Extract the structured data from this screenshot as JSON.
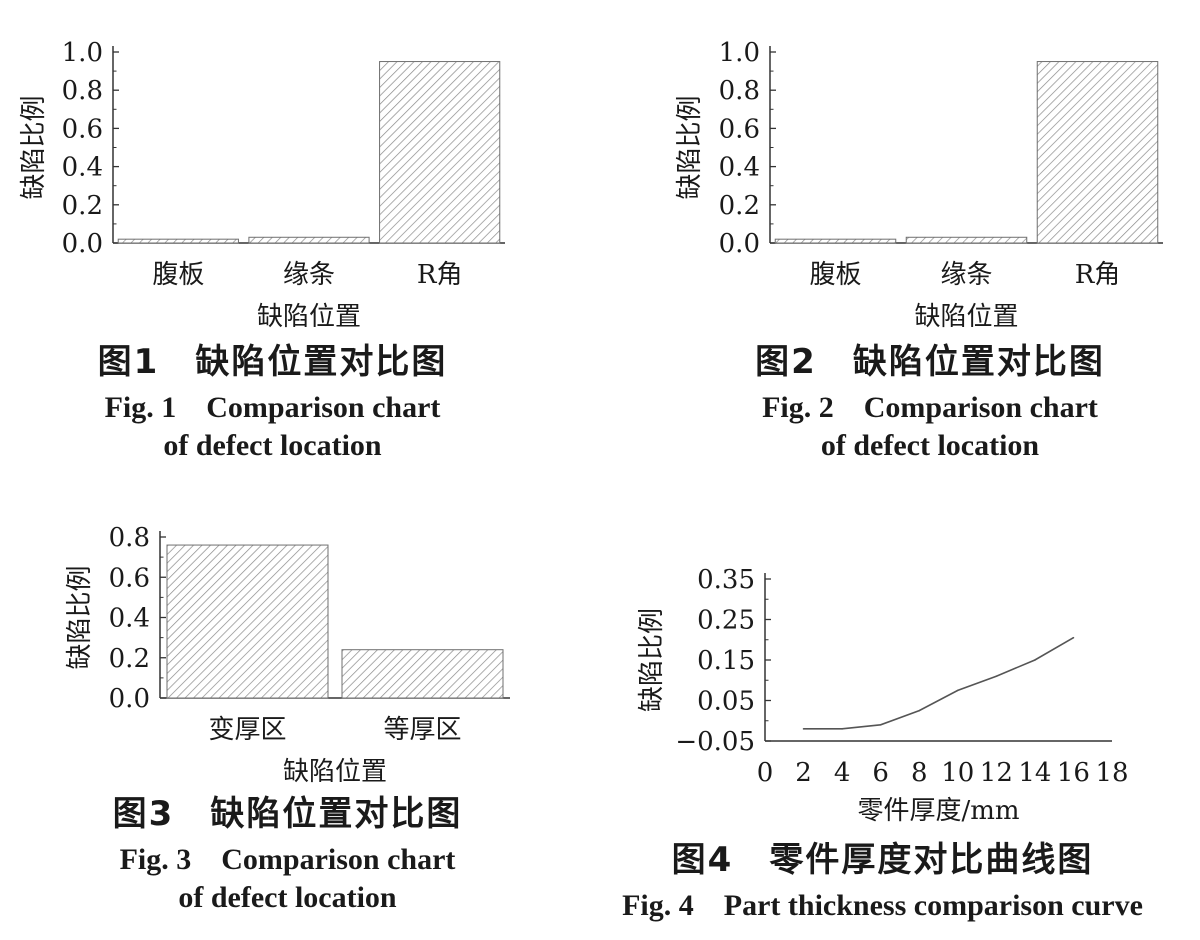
{
  "figures": [
    {
      "caption_cn": "图1　缺陷位置对比图",
      "caption_en_line1": "Fig. 1　Comparison chart",
      "caption_en_line2": "of defect location"
    },
    {
      "caption_cn": "图2　缺陷位置对比图",
      "caption_en_line1": "Fig. 2　Comparison chart",
      "caption_en_line2": "of defect location"
    },
    {
      "caption_cn": "图3　缺陷位置对比图",
      "caption_en_line1": "Fig. 3　Comparison chart",
      "caption_en_line2": "of defect location"
    },
    {
      "caption_cn": "图4　零件厚度对比曲线图",
      "caption_en_line1": "Fig. 4　Part thickness comparison curve"
    }
  ],
  "chart_data": [
    {
      "type": "bar",
      "categories": [
        "腹板",
        "缘条",
        "R角"
      ],
      "values": [
        0.02,
        0.03,
        0.95
      ],
      "xlabel": "缺陷位置",
      "ylabel": "缺陷比例",
      "ylim": [
        0,
        1.0
      ],
      "yticks": [
        "0.0",
        "0.2",
        "0.4",
        "0.6",
        "0.8",
        "1.0"
      ],
      "bar_fill": "hatched",
      "grid": false
    },
    {
      "type": "bar",
      "categories": [
        "腹板",
        "缘条",
        "R角"
      ],
      "values": [
        0.02,
        0.03,
        0.95
      ],
      "xlabel": "缺陷位置",
      "ylabel": "缺陷比例",
      "ylim": [
        0,
        1.0
      ],
      "yticks": [
        "0.0",
        "0.2",
        "0.4",
        "0.6",
        "0.8",
        "1.0"
      ],
      "bar_fill": "hatched",
      "grid": false
    },
    {
      "type": "bar",
      "categories": [
        "变厚区",
        "等厚区"
      ],
      "values": [
        0.76,
        0.24
      ],
      "xlabel": "缺陷位置",
      "ylabel": "缺陷比例",
      "ylim": [
        0,
        0.8
      ],
      "yticks": [
        "0.0",
        "0.2",
        "0.4",
        "0.6",
        "0.8"
      ],
      "bar_fill": "hatched",
      "grid": false
    },
    {
      "type": "line",
      "x": [
        2,
        4,
        6,
        8,
        10,
        12,
        14,
        16
      ],
      "y": [
        -0.02,
        -0.02,
        -0.01,
        0.025,
        0.075,
        0.11,
        0.15,
        0.205
      ],
      "xlabel": "零件厚度/mm",
      "ylabel": "缺陷比例",
      "xlim": [
        0,
        18
      ],
      "ylim": [
        -0.05,
        0.35
      ],
      "xticks": [
        "0",
        "2",
        "4",
        "6",
        "8",
        "10",
        "12",
        "14",
        "16",
        "18"
      ],
      "yticks": [
        "−0.05",
        "0.05",
        "0.15",
        "0.25",
        "0.35"
      ],
      "grid": false
    }
  ]
}
